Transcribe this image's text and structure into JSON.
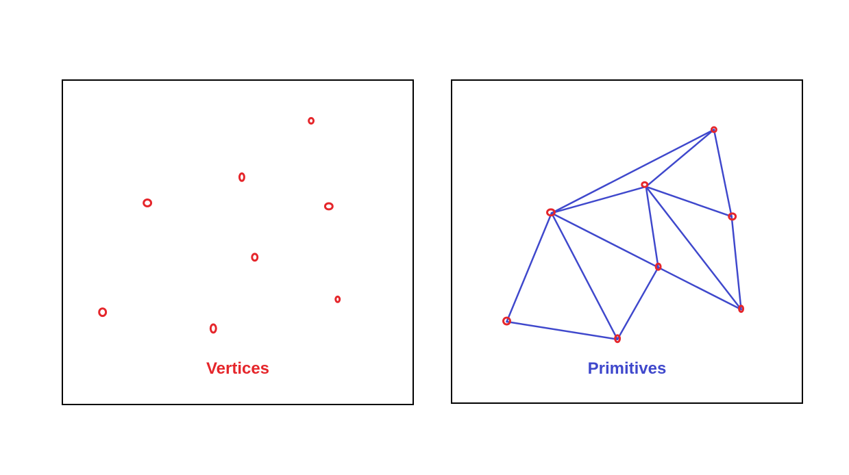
{
  "left_panel": {
    "caption": "Vertices",
    "caption_color": "#e5262b"
  },
  "right_panel": {
    "caption": "Primitives",
    "caption_color": "#3f48cc"
  },
  "colors": {
    "vertex": "#e5262b",
    "edge": "#3f48cc",
    "border": "#000000"
  }
}
